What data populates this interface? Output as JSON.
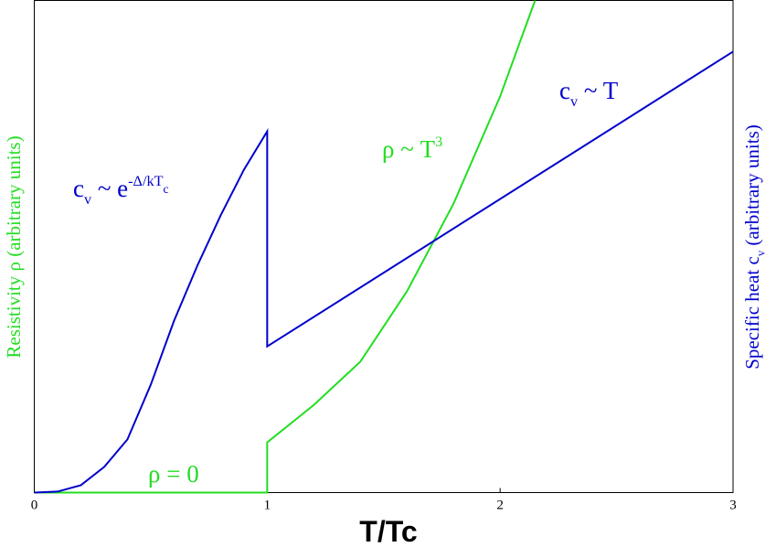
{
  "chart_data": {
    "type": "line",
    "xlabel": "T/Tc",
    "ylabel": {
      "color": "#22dd22",
      "segments": [
        {
          "text": "Resistivity ρ (arbitrary units)"
        }
      ]
    },
    "y2label": {
      "color": "#0000cc",
      "segments": [
        {
          "text": "Specific heat c"
        },
        {
          "text": "v",
          "script": "sub"
        },
        {
          "text": " (arbitrary units)"
        }
      ]
    },
    "xlim": [
      0,
      3
    ],
    "xticks": [
      0,
      1,
      2,
      3
    ],
    "ylim": [
      0,
      100
    ],
    "y2lim": [
      0,
      100
    ],
    "series": [
      {
        "name": "ρ",
        "color": "#22dd22",
        "axis": "y",
        "x": [
          0,
          1,
          1,
          1.2,
          1.4,
          1.6,
          1.8,
          2.0,
          2.15
        ],
        "values": [
          0,
          0,
          10.2,
          17.8,
          26.6,
          40.9,
          58.7,
          80.5,
          100
        ]
      },
      {
        "name": "c",
        "color": "#0000cc",
        "axis": "y2",
        "x": [
          0,
          0.1,
          0.2,
          0.3,
          0.4,
          0.5,
          0.6,
          0.7,
          0.8,
          0.9,
          1,
          1,
          3
        ],
        "values": [
          0,
          0.2,
          1.5,
          5.2,
          10.8,
          21.9,
          34.9,
          46.1,
          56.3,
          65.6,
          73.4,
          29.7,
          89.6
        ]
      }
    ],
    "annotations": [
      {
        "color": "#0000cc",
        "segments": [
          {
            "text": "c"
          },
          {
            "text": "v",
            "script": "sub"
          },
          {
            "text": " ~ e"
          },
          {
            "text": "-Δ/kT",
            "script": "sup"
          },
          {
            "text": "c",
            "script": "supsub"
          }
        ]
      },
      {
        "color": "#0000cc",
        "segments": [
          {
            "text": "c"
          },
          {
            "text": "v",
            "script": "sub"
          },
          {
            "text": " ~ T"
          }
        ]
      },
      {
        "color": "#22dd22",
        "segments": [
          {
            "text": "ρ ~ T"
          },
          {
            "text": "3",
            "script": "sup"
          }
        ]
      },
      {
        "color": "#22dd22",
        "segments": [
          {
            "text": "ρ = 0"
          }
        ]
      }
    ]
  }
}
